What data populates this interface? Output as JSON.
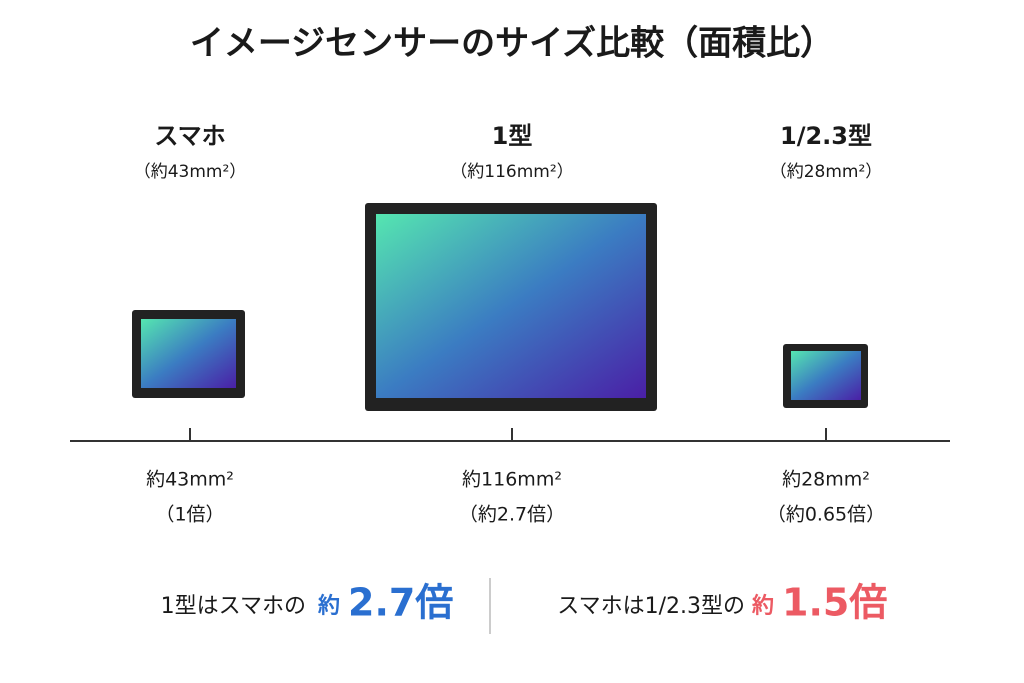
{
  "title": "イメージセンサーのサイズ比較（面積比）",
  "sensors": [
    {
      "name": "スマホ",
      "area_top": "（約43mm²）",
      "area": "約43mm²",
      "ratio": "（1倍）"
    },
    {
      "name": "1型",
      "area_top": "（約116mm²）",
      "area": "約116mm²",
      "ratio": "（約2.7倍）"
    },
    {
      "name": "1/2.3型",
      "area_top": "（約28mm²）",
      "area": "約28mm²",
      "ratio": "（約0.65倍）"
    }
  ],
  "footer": {
    "left": {
      "text": "1型はスマホの",
      "prefix": "約",
      "emphasis": "2.7倍"
    },
    "right": {
      "text": "スマホは1/2.3型の",
      "prefix": "約",
      "emphasis": "1.5倍"
    }
  }
}
